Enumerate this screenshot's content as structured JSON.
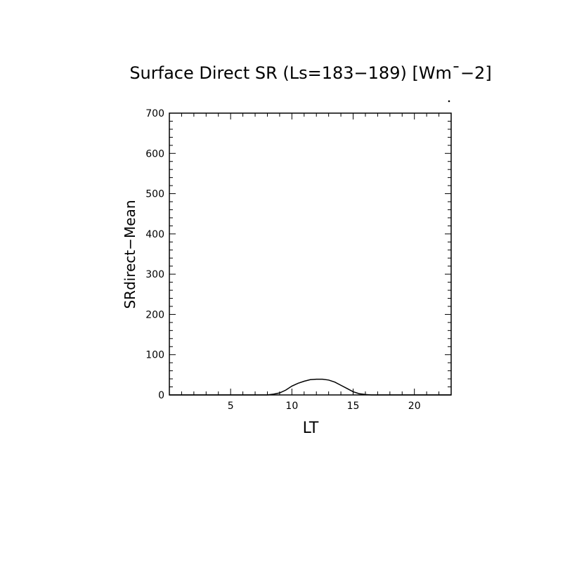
{
  "chart_data": {
    "type": "line",
    "title": "Surface Direct SR (Ls=183−189) [Wm¯−2]",
    "xlabel": "LT",
    "ylabel": "SRdirect−Mean",
    "xlim": [
      0,
      23
    ],
    "ylim": [
      0,
      700
    ],
    "x_ticks": [
      5,
      10,
      15,
      20
    ],
    "y_ticks": [
      0,
      100,
      200,
      300,
      400,
      500,
      600,
      700
    ],
    "x_minor_step": 1,
    "y_minor_step": 20,
    "grid": false,
    "x": [
      0,
      8,
      8.5,
      9,
      9.5,
      10,
      10.5,
      11,
      11.5,
      12,
      12.5,
      13,
      13.5,
      14,
      14.5,
      15,
      15.5,
      16,
      16.5,
      23
    ],
    "y": [
      0,
      0,
      2,
      5,
      12,
      22,
      29,
      34,
      38,
      39,
      39,
      37,
      32,
      24,
      16,
      8,
      3,
      1,
      0,
      0
    ]
  }
}
